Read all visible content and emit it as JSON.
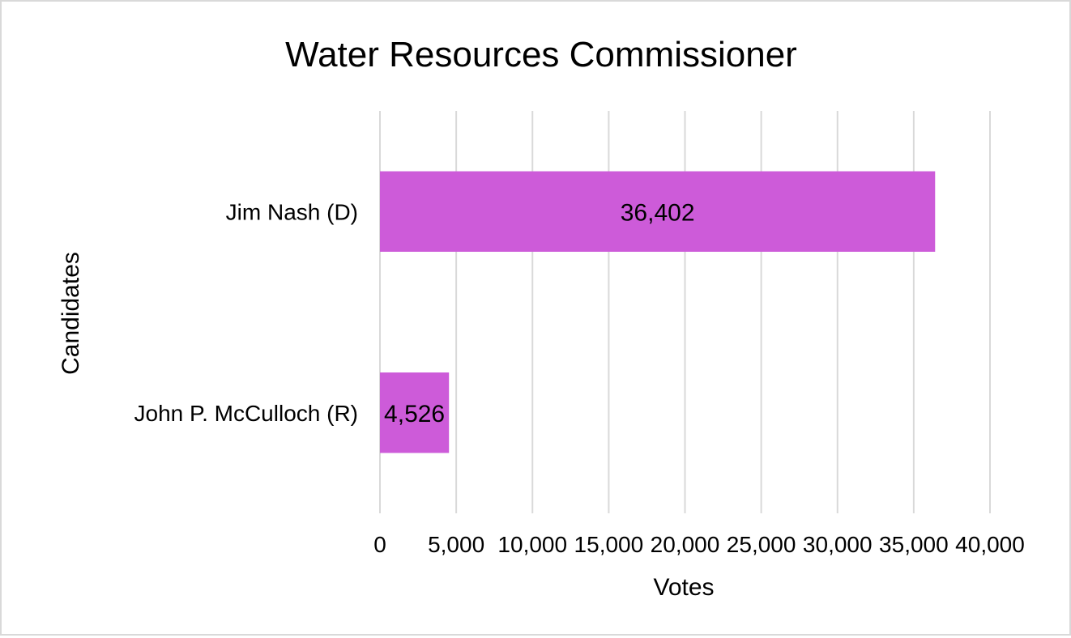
{
  "chart_data": {
    "type": "bar",
    "orientation": "horizontal",
    "title": "Water Resources Commissioner",
    "xlabel": "Votes",
    "ylabel": "Candidates",
    "categories": [
      "Jim Nash (D)",
      "John P. McCulloch (R)"
    ],
    "values": [
      36402,
      4526
    ],
    "data_labels": [
      "36,402",
      "4,526"
    ],
    "xlim": [
      0,
      40000
    ],
    "x_ticks": [
      0,
      5000,
      10000,
      15000,
      20000,
      25000,
      30000,
      35000,
      40000
    ],
    "x_tick_labels": [
      "0",
      "5,000",
      "10,000",
      "15,000",
      "20,000",
      "25,000",
      "30,000",
      "35,000",
      "40,000"
    ],
    "grid": true,
    "legend": "none",
    "bar_color": "#cd5bd9"
  }
}
